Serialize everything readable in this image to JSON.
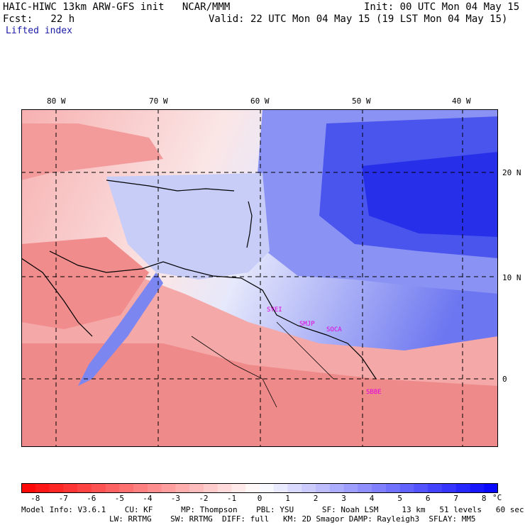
{
  "header": {
    "title": "HAIC-HIWC 13km ARW-GFS init   NCAR/MMM",
    "init": "Init: 00 UTC Mon 04 May 15",
    "fcst": "Fcst:   22 h",
    "valid": "Valid: 22 UTC Mon 04 May 15 (19 LST Mon 04 May 15)",
    "field": "Lifted index"
  },
  "map": {
    "lon_labels": [
      "80 W",
      "70 W",
      "60 W",
      "50 W",
      "40 W"
    ],
    "lat_labels": [
      "20 N",
      "10 N",
      "0"
    ],
    "stations": [
      {
        "name": "SYEI"
      },
      {
        "name": "SMJP"
      },
      {
        "name": "SOCA"
      },
      {
        "name": "SBBE"
      }
    ]
  },
  "colorbar": {
    "labels": [
      "-8",
      "-7",
      "-6",
      "-5",
      "-4",
      "-3",
      "-2",
      "-1",
      "0",
      "1",
      "2",
      "3",
      "4",
      "5",
      "6",
      "7",
      "8"
    ],
    "unit": "°C",
    "negative_color": "#ff0000",
    "positive_color": "#0000ff"
  },
  "footer": {
    "line1": "Model Info: V3.6.1    CU: KF      MP: Thompson    PBL: YSU      SF: Noah LSM     13 km   51 levels   60 sec",
    "line2": "LW: RRTMG    SW: RRTMG  DIFF: full   KM: 2D Smagor DAMP: Rayleigh3  SFLAY: MM5"
  }
}
